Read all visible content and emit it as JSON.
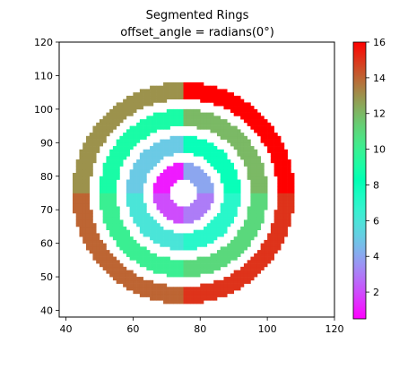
{
  "chart_data": {
    "type": "heatmap",
    "title": "Segmented Rings",
    "subtitle": "offset_angle = radians(0°)",
    "xlabel": "",
    "ylabel": "",
    "xlim": [
      38,
      120
    ],
    "ylim": [
      38,
      120
    ],
    "x_ticks": [
      40,
      60,
      80,
      100,
      120
    ],
    "y_ticks": [
      40,
      50,
      60,
      70,
      80,
      90,
      100,
      110,
      120
    ],
    "center": [
      75,
      75
    ],
    "colormap": "rainbow",
    "colorbar": {
      "min": 0.5,
      "max": 16,
      "ticks": [
        2,
        4,
        6,
        8,
        10,
        12,
        14,
        16
      ]
    },
    "rings": [
      {
        "inner_radius": 4,
        "outer_radius": 9,
        "segment_values": [
          1,
          2,
          3,
          4
        ]
      },
      {
        "inner_radius": 12,
        "outer_radius": 17,
        "segment_values": [
          5,
          6,
          7,
          8
        ]
      },
      {
        "inner_radius": 20,
        "outer_radius": 25,
        "segment_values": [
          9,
          10,
          11,
          12
        ]
      },
      {
        "inner_radius": 28,
        "outer_radius": 33,
        "segment_values": [
          13,
          14,
          15,
          16
        ]
      }
    ],
    "segments_note": "four quadrant segments per ring: upper-left, lower-left, lower-right, upper-right"
  }
}
